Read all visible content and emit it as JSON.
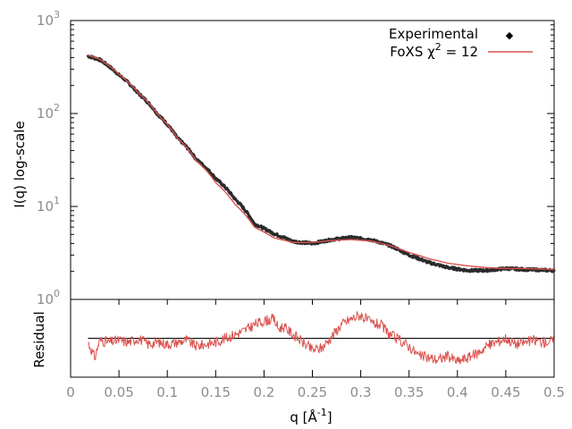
{
  "chart_data": [
    {
      "type": "scatter",
      "title": "",
      "ylabel": "I(q) log-scale",
      "yscale": "log",
      "ylim": [
        1,
        1000
      ],
      "xlim": [
        0,
        0.5
      ],
      "y_ticks": [
        {
          "base": "10",
          "exp": "0"
        },
        {
          "base": "10",
          "exp": "1"
        },
        {
          "base": "10",
          "exp": "2"
        },
        {
          "base": "10",
          "exp": "3"
        }
      ],
      "legend": {
        "placement": "top-right",
        "experimental_label": "Experimental",
        "fit_label_prefix": "FoXS χ",
        "fit_label_sup": "2",
        "fit_label_suffix": " = 12"
      },
      "series": [
        {
          "name": "Experimental",
          "color": "#2b2b2b",
          "x": [
            0.018,
            0.03,
            0.05,
            0.07,
            0.09,
            0.11,
            0.13,
            0.15,
            0.17,
            0.19,
            0.21,
            0.23,
            0.25,
            0.27,
            0.29,
            0.31,
            0.33,
            0.35,
            0.37,
            0.39,
            0.41,
            0.43,
            0.45,
            0.47,
            0.5
          ],
          "y": [
            415,
            380,
            260,
            165,
            98,
            55,
            32,
            20,
            12,
            6.5,
            5.1,
            4.2,
            4.0,
            4.4,
            4.65,
            4.4,
            3.8,
            3.0,
            2.5,
            2.2,
            2.05,
            2.05,
            2.15,
            2.1,
            2.05
          ]
        },
        {
          "name": "FoXS",
          "color": "#d9534f",
          "x": [
            0.018,
            0.03,
            0.05,
            0.07,
            0.09,
            0.11,
            0.13,
            0.15,
            0.17,
            0.19,
            0.21,
            0.23,
            0.25,
            0.27,
            0.29,
            0.31,
            0.33,
            0.35,
            0.37,
            0.39,
            0.41,
            0.43,
            0.45,
            0.47,
            0.5
          ],
          "y": [
            425,
            385,
            265,
            167,
            98,
            55,
            31,
            18,
            10.5,
            6.0,
            4.6,
            4.1,
            4.1,
            4.3,
            4.4,
            4.25,
            3.8,
            3.2,
            2.75,
            2.45,
            2.3,
            2.2,
            2.15,
            2.15,
            2.1
          ]
        }
      ]
    },
    {
      "type": "line",
      "title": "",
      "ylabel": "Residual",
      "xlabel_prefix": "q [Å",
      "xlabel_sup": "-1",
      "xlabel_suffix": "]",
      "xlim": [
        0,
        0.5
      ],
      "x_ticks": [
        "0",
        "0.05",
        "0.1",
        "0.15",
        "0.2",
        "0.25",
        "0.3",
        "0.35",
        "0.4",
        "0.45",
        "0.5"
      ],
      "x_tick_values": [
        0,
        0.05,
        0.1,
        0.15,
        0.2,
        0.25,
        0.3,
        0.35,
        0.4,
        0.45,
        0.5
      ],
      "ylim": [
        -1,
        1
      ],
      "reference_line": 0,
      "series": [
        {
          "name": "Residual",
          "color": "#d9534f",
          "x": [
            0.018,
            0.025,
            0.03,
            0.04,
            0.05,
            0.06,
            0.07,
            0.08,
            0.09,
            0.1,
            0.11,
            0.12,
            0.13,
            0.14,
            0.15,
            0.16,
            0.17,
            0.18,
            0.19,
            0.2,
            0.21,
            0.215,
            0.22,
            0.23,
            0.24,
            0.25,
            0.26,
            0.27,
            0.28,
            0.29,
            0.3,
            0.31,
            0.32,
            0.33,
            0.34,
            0.35,
            0.36,
            0.37,
            0.38,
            0.39,
            0.4,
            0.41,
            0.42,
            0.43,
            0.44,
            0.45,
            0.46,
            0.47,
            0.48,
            0.49,
            0.5
          ],
          "y": [
            -0.1,
            -0.5,
            -0.05,
            -0.1,
            -0.05,
            -0.1,
            0.0,
            -0.15,
            -0.1,
            -0.15,
            -0.1,
            -0.05,
            -0.2,
            -0.15,
            -0.1,
            0.0,
            0.1,
            0.2,
            0.35,
            0.45,
            0.5,
            0.25,
            0.3,
            0.1,
            -0.1,
            -0.3,
            -0.25,
            0.05,
            0.35,
            0.5,
            0.6,
            0.4,
            0.35,
            0.1,
            -0.05,
            -0.2,
            -0.45,
            -0.5,
            -0.55,
            -0.45,
            -0.6,
            -0.5,
            -0.4,
            -0.2,
            -0.1,
            0.0,
            -0.15,
            -0.1,
            -0.05,
            -0.1,
            -0.05
          ]
        }
      ]
    }
  ]
}
